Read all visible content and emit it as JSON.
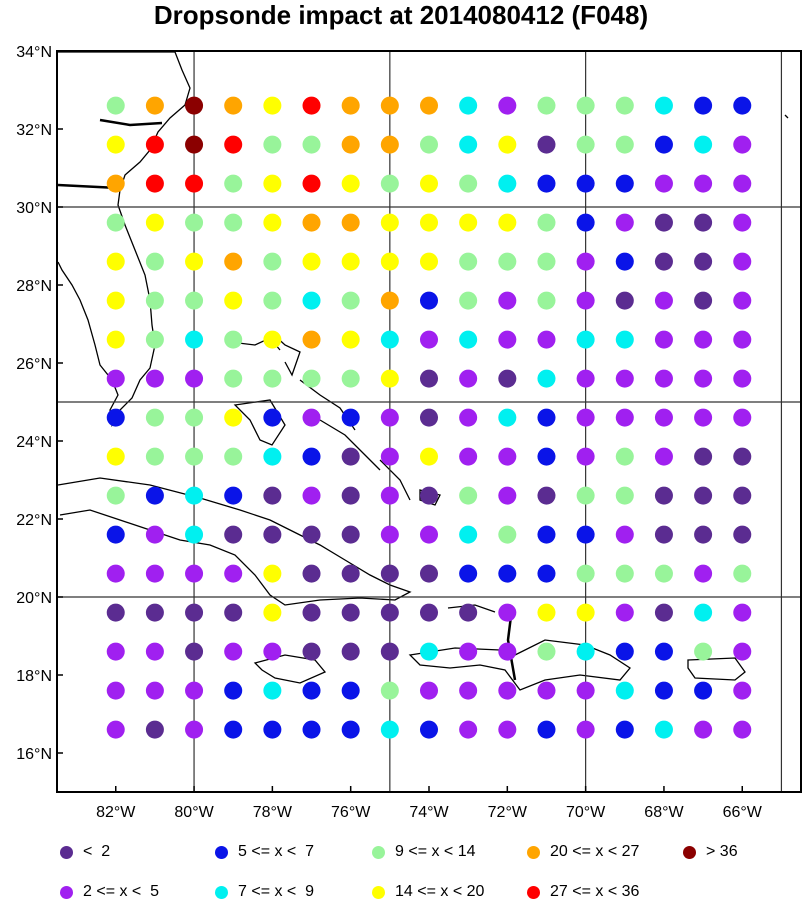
{
  "title": "Dropsonde impact at 2014080412 (F048)",
  "colors": {
    "frame": "#000000",
    "gridline": "#333333",
    "coast": "#000000",
    "county": "#777777",
    "land": "#ffffff"
  },
  "map": {
    "lon_range": [
      -83.5,
      -64.5
    ],
    "lat_range": [
      15.0,
      34.0
    ],
    "x_ticks": [
      {
        "lon": -82,
        "label": "82°W"
      },
      {
        "lon": -80,
        "label": "80°W"
      },
      {
        "lon": -78,
        "label": "78°W"
      },
      {
        "lon": -76,
        "label": "76°W"
      },
      {
        "lon": -74,
        "label": "74°W"
      },
      {
        "lon": -72,
        "label": "72°W"
      },
      {
        "lon": -70,
        "label": "70°W"
      },
      {
        "lon": -68,
        "label": "68°W"
      },
      {
        "lon": -66,
        "label": "66°W"
      }
    ],
    "y_ticks": [
      {
        "lat": 16,
        "label": "16°N"
      },
      {
        "lat": 18,
        "label": "18°N"
      },
      {
        "lat": 20,
        "label": "20°N"
      },
      {
        "lat": 22,
        "label": "22°N"
      },
      {
        "lat": 24,
        "label": "24°N"
      },
      {
        "lat": 26,
        "label": "26°N"
      },
      {
        "lat": 28,
        "label": "28°N"
      },
      {
        "lat": 30,
        "label": "30°N"
      },
      {
        "lat": 32,
        "label": "32°N"
      },
      {
        "lat": 34,
        "label": "34°N"
      }
    ],
    "grid_lons": [
      -80,
      -75,
      -70,
      -65
    ],
    "grid_lats": [
      20,
      25,
      30
    ]
  },
  "legend": [
    {
      "label": "<  2",
      "color": "#5b2c91"
    },
    {
      "label": "2 <= x <  5",
      "color": "#a020f0"
    },
    {
      "label": "5 <= x <  7",
      "color": "#0a14e8"
    },
    {
      "label": "7 <= x <  9",
      "color": "#00f0f0"
    },
    {
      "label": "9 <= x < 14",
      "color": "#98f49a"
    },
    {
      "label": "14 <= x < 20",
      "color": "#ffff00"
    },
    {
      "label": "20 <= x < 27",
      "color": "#ffa500"
    },
    {
      "label": "27 <= x < 36",
      "color": "#ff0000"
    },
    {
      "label": "> 36",
      "color": "#8b0000"
    }
  ],
  "chart_data": {
    "type": "map-points",
    "title": "Dropsonde impact at 2014080412 (F048)",
    "lons": [
      -82,
      -81,
      -80,
      -79,
      -78,
      -77,
      -76,
      -75,
      -74,
      -73,
      -72,
      -71,
      -70,
      -69,
      -68,
      -67,
      -66
    ],
    "lats": [
      32.6,
      31.6,
      30.6,
      29.6,
      28.6,
      27.6,
      26.6,
      25.6,
      24.6,
      23.6,
      22.6,
      21.6,
      20.6,
      19.6,
      18.6,
      17.6,
      16.6
    ],
    "category_key": "0:<2, 1:2<=x<5, 2:5<=x<7, 3:7<=x<9, 4:9<=x<14, 5:14<=x<20, 6:20<=x<27, 7:27<=x<36, 8:>36",
    "categories": [
      [
        4,
        6,
        8,
        6,
        5,
        7,
        6,
        6,
        6,
        3,
        1,
        4,
        4,
        4,
        3,
        2,
        2
      ],
      [
        5,
        7,
        8,
        7,
        4,
        4,
        6,
        6,
        4,
        3,
        5,
        0,
        4,
        4,
        2,
        3,
        1
      ],
      [
        6,
        7,
        7,
        4,
        5,
        7,
        5,
        4,
        5,
        4,
        3,
        2,
        2,
        2,
        1,
        1,
        1
      ],
      [
        4,
        5,
        4,
        4,
        5,
        6,
        6,
        5,
        5,
        5,
        5,
        4,
        2,
        1,
        0,
        0,
        1
      ],
      [
        5,
        4,
        5,
        6,
        4,
        5,
        5,
        5,
        5,
        4,
        4,
        4,
        1,
        2,
        0,
        0,
        1
      ],
      [
        5,
        4,
        4,
        5,
        4,
        3,
        4,
        6,
        2,
        4,
        1,
        4,
        1,
        0,
        1,
        0,
        1
      ],
      [
        5,
        4,
        3,
        4,
        5,
        6,
        5,
        3,
        1,
        3,
        1,
        1,
        3,
        3,
        1,
        1,
        1
      ],
      [
        1,
        1,
        1,
        4,
        4,
        4,
        4,
        5,
        0,
        1,
        0,
        3,
        1,
        1,
        1,
        1,
        1
      ],
      [
        2,
        4,
        4,
        5,
        2,
        1,
        2,
        1,
        0,
        1,
        3,
        2,
        1,
        1,
        1,
        1,
        1
      ],
      [
        5,
        4,
        4,
        4,
        3,
        2,
        0,
        1,
        5,
        1,
        1,
        2,
        1,
        4,
        1,
        0,
        0
      ],
      [
        4,
        2,
        3,
        2,
        0,
        1,
        0,
        1,
        0,
        4,
        1,
        0,
        4,
        4,
        0,
        0,
        0
      ],
      [
        2,
        1,
        3,
        0,
        0,
        0,
        0,
        1,
        1,
        3,
        4,
        2,
        2,
        1,
        0,
        0,
        0
      ],
      [
        1,
        1,
        1,
        1,
        5,
        0,
        0,
        0,
        0,
        2,
        2,
        2,
        4,
        4,
        4,
        1,
        4
      ],
      [
        0,
        0,
        0,
        0,
        5,
        0,
        0,
        0,
        0,
        0,
        1,
        5,
        5,
        1,
        0,
        3,
        1
      ],
      [
        1,
        1,
        0,
        1,
        1,
        0,
        0,
        0,
        3,
        1,
        1,
        4,
        3,
        2,
        2,
        4,
        1
      ],
      [
        1,
        1,
        1,
        2,
        3,
        2,
        2,
        4,
        1,
        1,
        1,
        1,
        1,
        3,
        2,
        2,
        1
      ],
      [
        1,
        0,
        1,
        2,
        2,
        2,
        2,
        3,
        2,
        1,
        1,
        2,
        1,
        2,
        3,
        1,
        1
      ]
    ]
  }
}
